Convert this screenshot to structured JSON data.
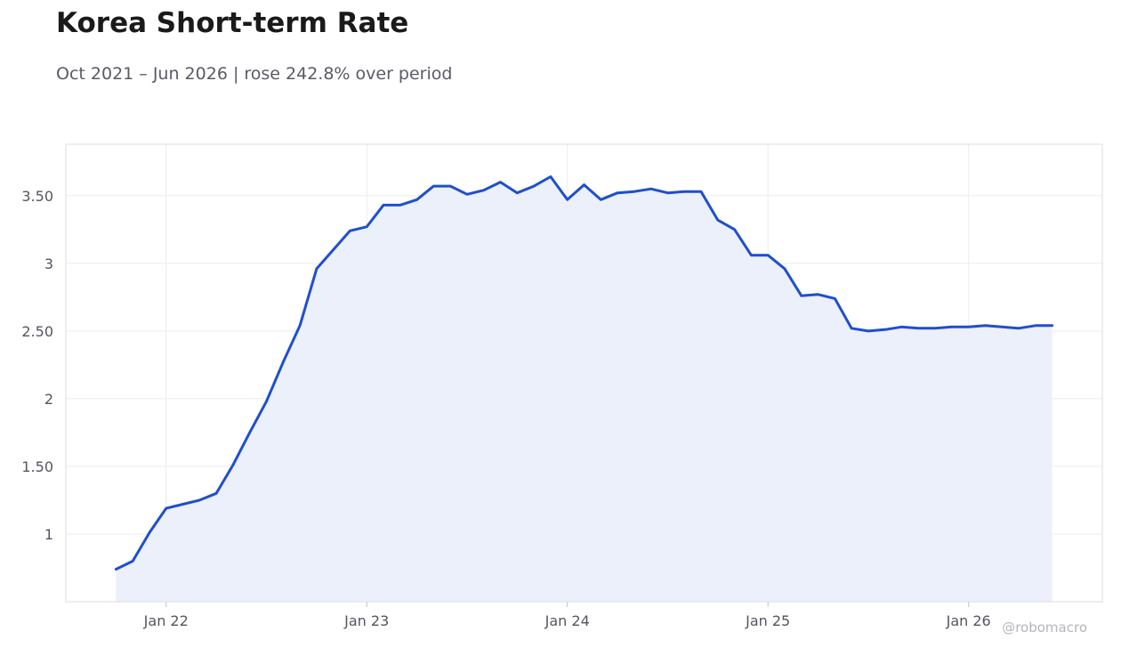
{
  "title": "Korea Short-term Rate",
  "subtitle": "Oct 2021 – Jun 2026 | rose 242.8% over period",
  "watermark": "@robomacro",
  "colors": {
    "line": "#1f4fcc",
    "fill": "#ebf0fb",
    "grid": "#ececf0",
    "frame": "#dddde2"
  },
  "chart_data": {
    "type": "area",
    "title": "Korea Short-term Rate",
    "subtitle": "Oct 2021 – Jun 2026 | rose 242.8% over period",
    "xlabel": "",
    "ylabel": "",
    "x_start": "2021-10",
    "x_end": "2026-06",
    "x_ticks": [
      {
        "label": "Jan 22",
        "date": "2022-01"
      },
      {
        "label": "Jan 23",
        "date": "2023-01"
      },
      {
        "label": "Jan 24",
        "date": "2024-01"
      },
      {
        "label": "Jan 25",
        "date": "2025-01"
      },
      {
        "label": "Jan 26",
        "date": "2026-01"
      }
    ],
    "y_ticks": [
      {
        "label": "1",
        "value": 1
      },
      {
        "label": "1.50",
        "value": 1.5
      },
      {
        "label": "2",
        "value": 2
      },
      {
        "label": "2.50",
        "value": 2.5
      },
      {
        "label": "3",
        "value": 3
      },
      {
        "label": "3.50",
        "value": 3.5
      }
    ],
    "ylim": [
      0.5,
      3.88
    ],
    "xlim": [
      "2021-07",
      "2026-09"
    ],
    "grid": true,
    "series": [
      {
        "x": [
          "2021-10",
          "2021-11",
          "2021-12",
          "2022-01",
          "2022-02",
          "2022-03",
          "2022-04",
          "2022-05",
          "2022-06",
          "2022-07",
          "2022-08",
          "2022-09",
          "2022-10",
          "2022-11",
          "2022-12",
          "2023-01",
          "2023-02",
          "2023-03",
          "2023-04",
          "2023-05",
          "2023-06",
          "2023-07",
          "2023-08",
          "2023-09",
          "2023-10",
          "2023-11",
          "2023-12",
          "2024-01",
          "2024-02",
          "2024-03",
          "2024-04",
          "2024-05",
          "2024-06",
          "2024-07",
          "2024-08",
          "2024-09",
          "2024-10",
          "2024-11",
          "2024-12",
          "2025-01",
          "2025-02",
          "2025-03",
          "2025-04",
          "2025-05",
          "2025-06",
          "2025-07",
          "2025-08",
          "2025-09",
          "2025-10",
          "2025-11",
          "2025-12",
          "2026-01",
          "2026-02",
          "2026-03",
          "2026-04",
          "2026-05",
          "2026-06"
        ],
        "values": [
          0.74,
          0.8,
          1.01,
          1.19,
          1.22,
          1.25,
          1.3,
          1.51,
          1.75,
          1.98,
          2.27,
          2.54,
          2.96,
          3.1,
          3.24,
          3.27,
          3.43,
          3.43,
          3.47,
          3.57,
          3.57,
          3.51,
          3.54,
          3.6,
          3.52,
          3.57,
          3.64,
          3.47,
          3.58,
          3.47,
          3.52,
          3.53,
          3.55,
          3.52,
          3.53,
          3.53,
          3.32,
          3.25,
          3.06,
          3.06,
          2.96,
          2.76,
          2.77,
          2.74,
          2.52,
          2.5,
          2.51,
          2.53,
          2.52,
          2.52,
          2.53,
          2.53,
          2.54,
          2.53,
          2.52,
          2.54,
          2.54
        ]
      }
    ]
  }
}
